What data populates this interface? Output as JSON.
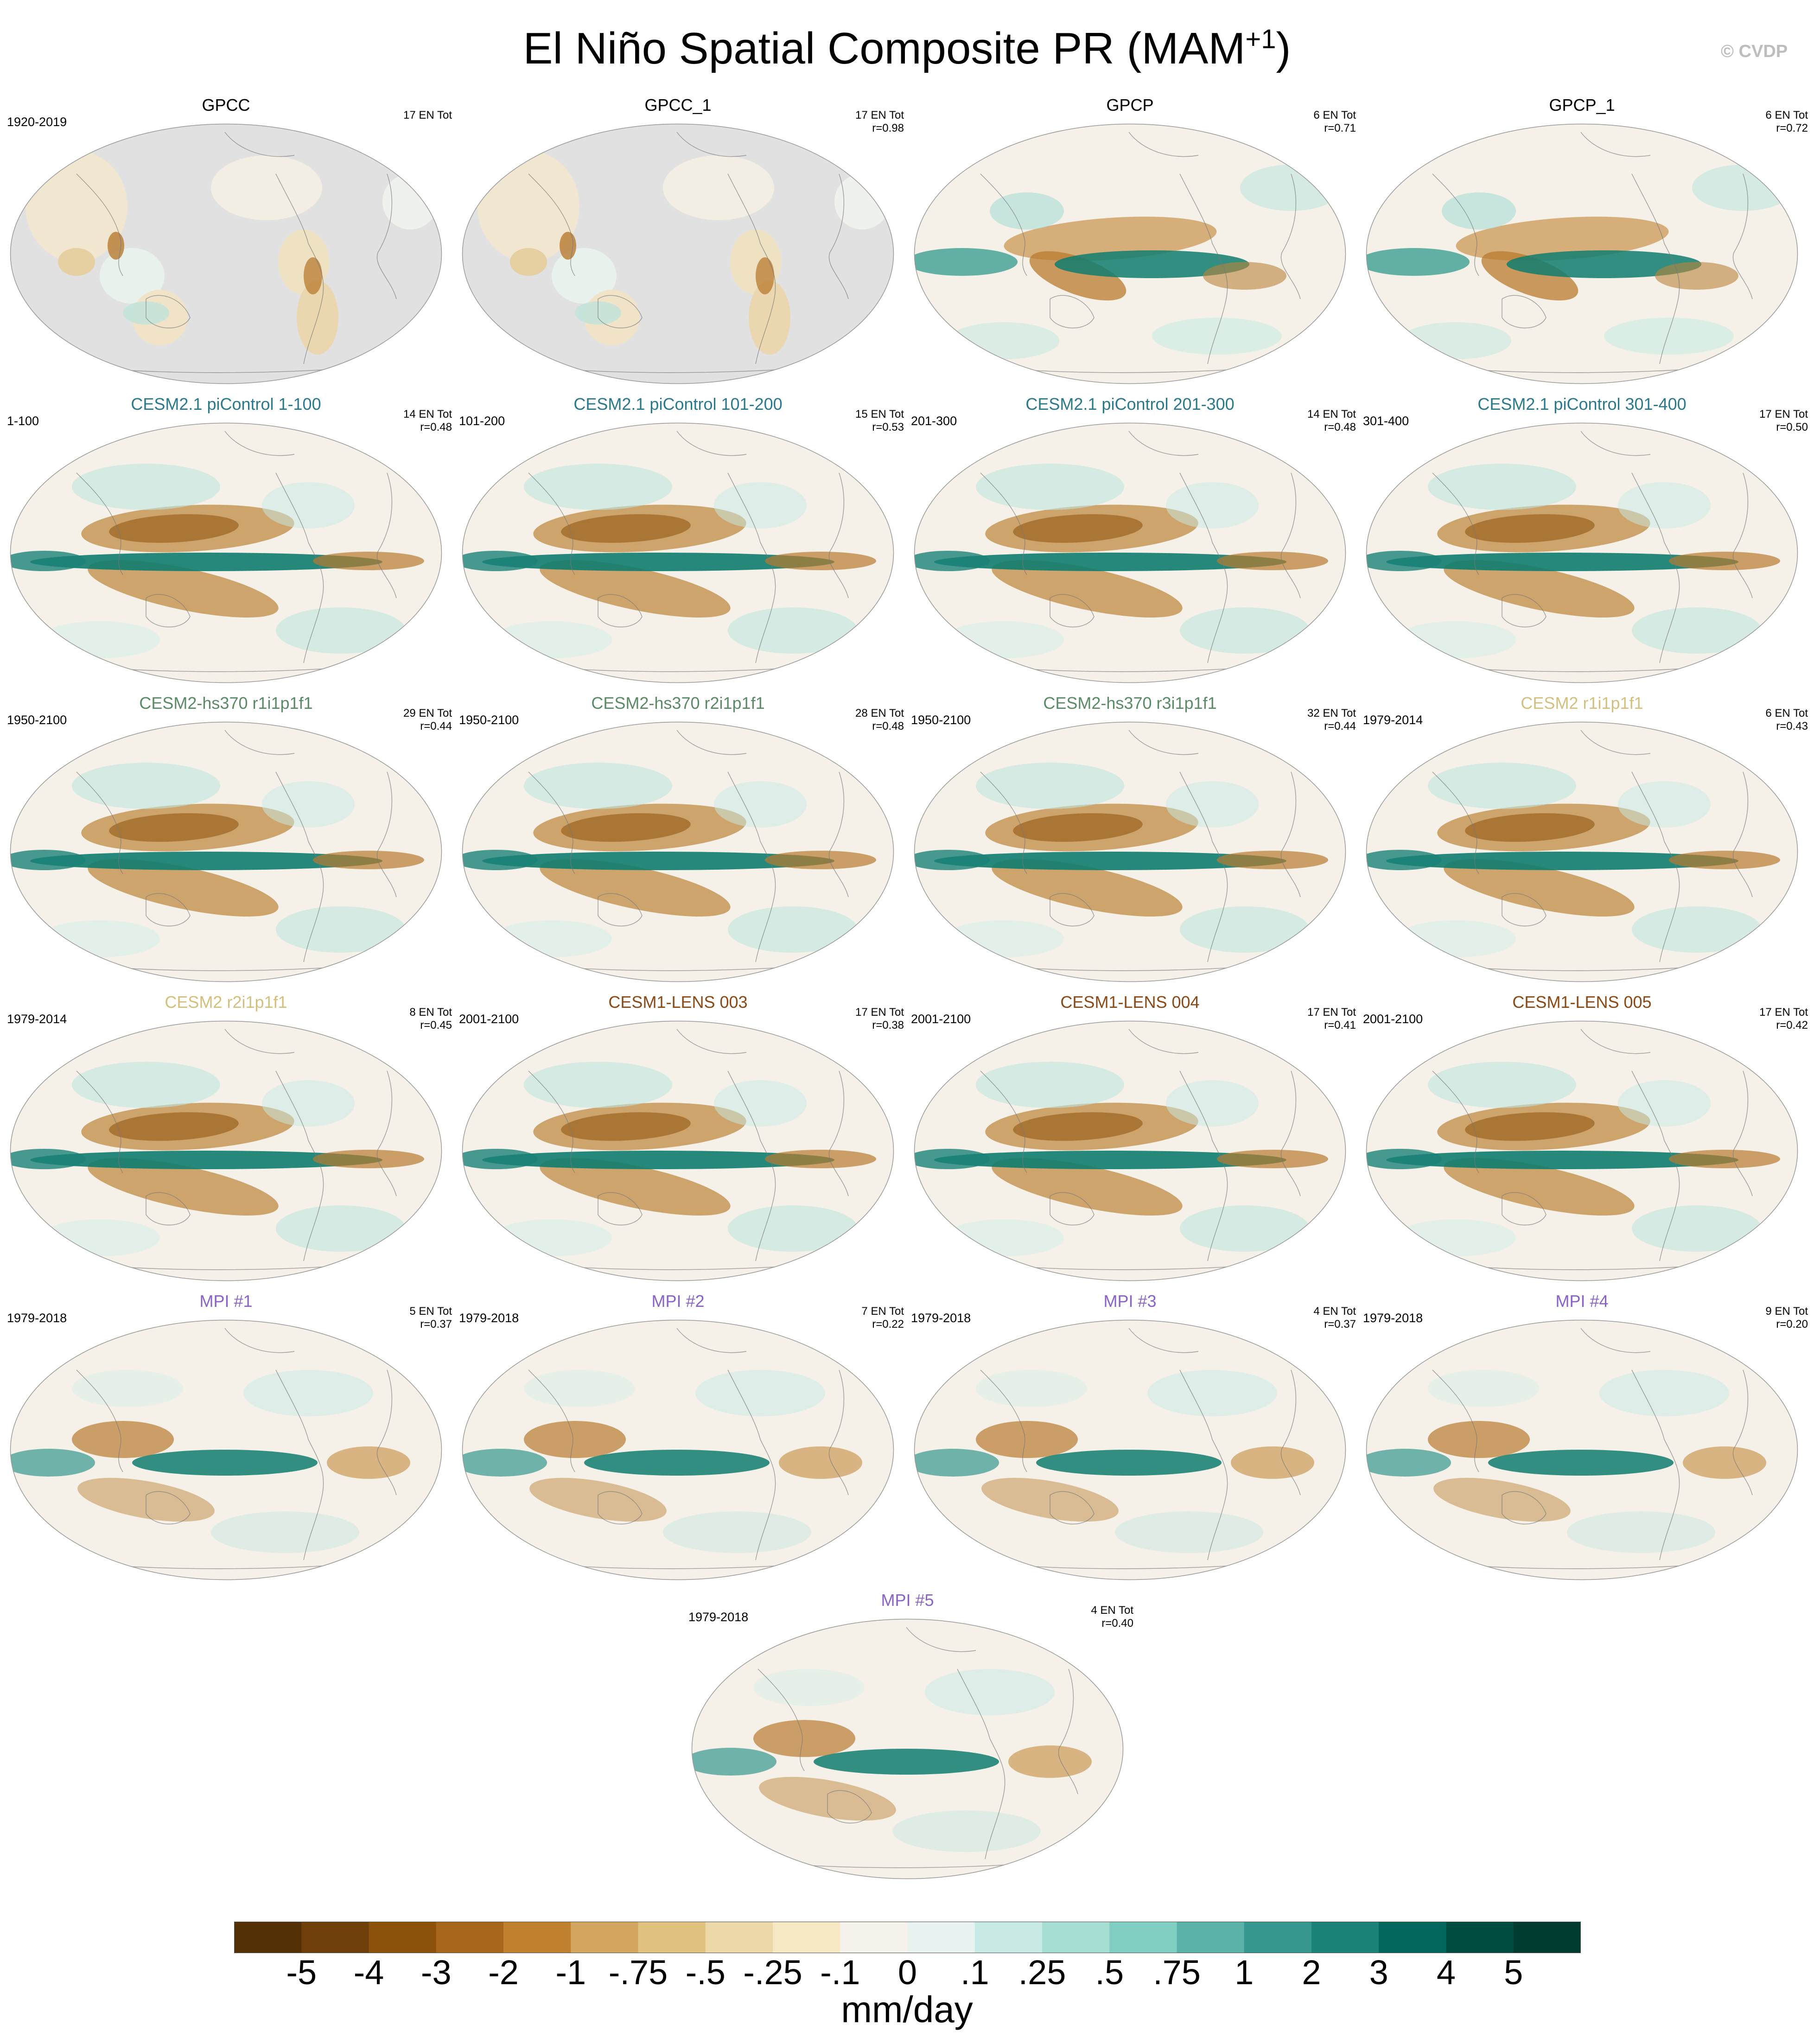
{
  "title": {
    "main": "El Niño Spatial Composite PR (MAM",
    "sup": "+1",
    "close": ")"
  },
  "copyright": "© CVDP",
  "colors": {
    "title_default": "#000000",
    "cesm21_picontrol": "#2b7a8c",
    "cesm2_hs370": "#5b8a67",
    "cesm2": "#d4c07e",
    "cesm1_lens": "#8a4a17",
    "mpi": "#8a63c9",
    "land_missing": "#e1e1e1",
    "pattern_dry": "#b87a2f",
    "pattern_wet": "#0f7c6e"
  },
  "panels": [
    {
      "title": "GPCC",
      "left": "1920-2019",
      "right1": "17 EN Tot",
      "right2": "",
      "color_key": "title_default",
      "pattern": "gpcc"
    },
    {
      "title": "GPCC_1",
      "left": "",
      "right1": "17 EN Tot",
      "right2": "r=0.98",
      "color_key": "title_default",
      "pattern": "gpcc"
    },
    {
      "title": "GPCP",
      "left": "",
      "right1": "6 EN Tot",
      "right2": "r=0.71",
      "color_key": "title_default",
      "pattern": "obs"
    },
    {
      "title": "GPCP_1",
      "left": "",
      "right1": "6 EN Tot",
      "right2": "r=0.72",
      "color_key": "title_default",
      "pattern": "obs"
    },
    {
      "title": "CESM2.1 piControl 1-100",
      "left": "1-100",
      "right1": "14 EN Tot",
      "right2": "r=0.48",
      "color_key": "cesm21_picontrol",
      "pattern": "model"
    },
    {
      "title": "CESM2.1 piControl 101-200",
      "left": "101-200",
      "right1": "15 EN Tot",
      "right2": "r=0.53",
      "color_key": "cesm21_picontrol",
      "pattern": "model"
    },
    {
      "title": "CESM2.1 piControl 201-300",
      "left": "201-300",
      "right1": "14 EN Tot",
      "right2": "r=0.48",
      "color_key": "cesm21_picontrol",
      "pattern": "model"
    },
    {
      "title": "CESM2.1 piControl 301-400",
      "left": "301-400",
      "right1": "17 EN Tot",
      "right2": "r=0.50",
      "color_key": "cesm21_picontrol",
      "pattern": "model"
    },
    {
      "title": "CESM2-hs370 r1i1p1f1",
      "left": "1950-2100",
      "right1": "29 EN Tot",
      "right2": "r=0.44",
      "color_key": "cesm2_hs370",
      "pattern": "model"
    },
    {
      "title": "CESM2-hs370 r2i1p1f1",
      "left": "1950-2100",
      "right1": "28 EN Tot",
      "right2": "r=0.48",
      "color_key": "cesm2_hs370",
      "pattern": "model"
    },
    {
      "title": "CESM2-hs370 r3i1p1f1",
      "left": "1950-2100",
      "right1": "32 EN Tot",
      "right2": "r=0.44",
      "color_key": "cesm2_hs370",
      "pattern": "model"
    },
    {
      "title": "CESM2 r1i1p1f1",
      "left": "1979-2014",
      "right1": "6 EN Tot",
      "right2": "r=0.43",
      "color_key": "cesm2",
      "pattern": "model"
    },
    {
      "title": "CESM2 r2i1p1f1",
      "left": "1979-2014",
      "right1": "8 EN Tot",
      "right2": "r=0.45",
      "color_key": "cesm2",
      "pattern": "model"
    },
    {
      "title": "CESM1-LENS 003",
      "left": "2001-2100",
      "right1": "17 EN Tot",
      "right2": "r=0.38",
      "color_key": "cesm1_lens",
      "pattern": "model"
    },
    {
      "title": "CESM1-LENS 004",
      "left": "2001-2100",
      "right1": "17 EN Tot",
      "right2": "r=0.41",
      "color_key": "cesm1_lens",
      "pattern": "model"
    },
    {
      "title": "CESM1-LENS 005",
      "left": "2001-2100",
      "right1": "17 EN Tot",
      "right2": "r=0.42",
      "color_key": "cesm1_lens",
      "pattern": "model"
    },
    {
      "title": "MPI #1",
      "left": "1979-2018",
      "right1": "5 EN Tot",
      "right2": "r=0.37",
      "color_key": "mpi",
      "pattern": "mpi"
    },
    {
      "title": "MPI #2",
      "left": "1979-2018",
      "right1": "7 EN Tot",
      "right2": "r=0.22",
      "color_key": "mpi",
      "pattern": "mpi"
    },
    {
      "title": "MPI #3",
      "left": "1979-2018",
      "right1": "4 EN Tot",
      "right2": "r=0.37",
      "color_key": "mpi",
      "pattern": "mpi"
    },
    {
      "title": "MPI #4",
      "left": "1979-2018",
      "right1": "9 EN Tot",
      "right2": "r=0.20",
      "color_key": "mpi",
      "pattern": "mpi"
    },
    {
      "title": "MPI #5",
      "left": "1979-2018",
      "right1": "4 EN Tot",
      "right2": "r=0.40",
      "color_key": "mpi",
      "pattern": "mpi"
    }
  ],
  "colorbar": {
    "colors": [
      "#543005",
      "#6f3f0a",
      "#8c510a",
      "#a6671c",
      "#bf812d",
      "#d3a560",
      "#dfc27d",
      "#ecd8a8",
      "#f6e8c3",
      "#f5f2ec",
      "#e8f3f1",
      "#c7eae5",
      "#a5ddd3",
      "#80cdc1",
      "#5ab2a8",
      "#35978f",
      "#1b8278",
      "#01665e",
      "#014c40",
      "#003c30"
    ],
    "labels": [
      "-5",
      "-4",
      "-3",
      "-2",
      "-1",
      "-.75",
      "-.5",
      "-.25",
      "-.1",
      "0",
      ".1",
      ".25",
      ".5",
      ".75",
      "1",
      "2",
      "3",
      "4",
      "5"
    ],
    "units": "mm/day"
  }
}
